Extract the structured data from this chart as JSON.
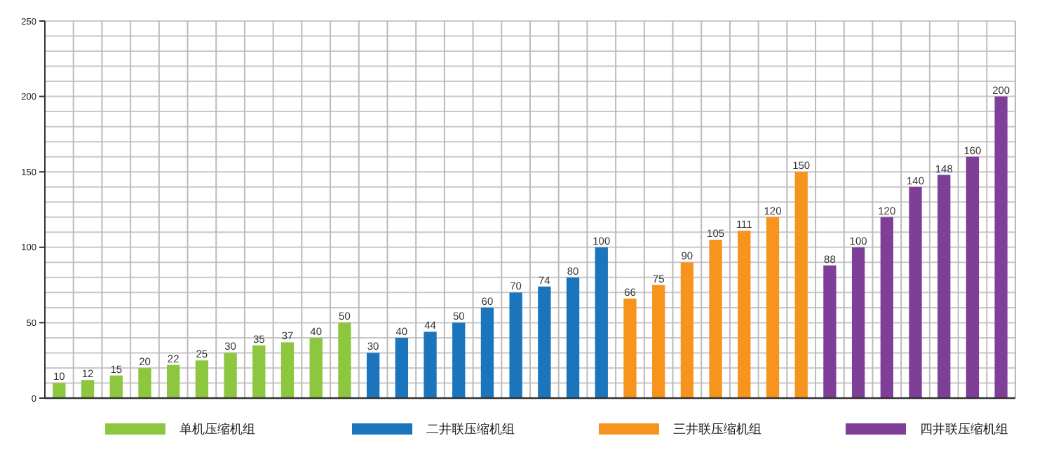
{
  "chart_data": {
    "type": "bar",
    "categories": [
      null,
      null,
      null,
      null,
      null,
      null,
      null,
      null,
      null,
      null,
      null,
      null,
      null,
      null,
      null,
      null,
      null,
      null,
      null,
      null,
      null,
      null,
      null,
      null,
      null,
      null,
      null,
      null,
      null,
      null,
      null,
      null,
      null,
      null
    ],
    "series": [
      {
        "name": "单机压缩机组",
        "color": "#8dc63f",
        "values": [
          10,
          12,
          15,
          20,
          22,
          25,
          30,
          35,
          37,
          40,
          50,
          null,
          null,
          null,
          null,
          null,
          null,
          null,
          null,
          null,
          null,
          null,
          null,
          null,
          null,
          null,
          null,
          null,
          null,
          null,
          null,
          null,
          null,
          null
        ]
      },
      {
        "name": "二井联压缩机组",
        "color": "#1b75bc",
        "values": [
          null,
          null,
          null,
          null,
          null,
          null,
          null,
          null,
          null,
          null,
          null,
          30,
          40,
          44,
          50,
          60,
          70,
          74,
          80,
          100,
          null,
          null,
          null,
          null,
          null,
          null,
          null,
          null,
          null,
          null,
          null,
          null,
          null,
          null
        ]
      },
      {
        "name": "三井联压缩机组",
        "color": "#f7941d",
        "values": [
          null,
          null,
          null,
          null,
          null,
          null,
          null,
          null,
          null,
          null,
          null,
          null,
          null,
          null,
          null,
          null,
          null,
          null,
          null,
          null,
          66,
          75,
          90,
          105,
          111,
          120,
          150,
          null,
          null,
          null,
          null,
          null,
          null,
          null
        ]
      },
      {
        "name": "四井联压缩机组",
        "color": "#7f3f98",
        "values": [
          null,
          null,
          null,
          null,
          null,
          null,
          null,
          null,
          null,
          null,
          null,
          null,
          null,
          null,
          null,
          null,
          null,
          null,
          null,
          null,
          null,
          null,
          null,
          null,
          null,
          null,
          null,
          88,
          100,
          120,
          140,
          148,
          160,
          200
        ]
      }
    ],
    "ylim": [
      0,
      250
    ],
    "yticks": [
      0,
      {
        "value": 10,
        "label": null
      },
      {
        "value": 20,
        "label": null
      },
      {
        "value": 30,
        "label": null
      },
      {
        "value": 40,
        "label": null
      },
      50,
      {
        "value": 60,
        "label": null
      },
      {
        "value": 70,
        "label": null
      },
      {
        "value": 80,
        "label": null
      },
      {
        "value": 90,
        "label": null
      },
      100,
      {
        "value": 110,
        "label": null
      },
      {
        "value": 120,
        "label": null
      },
      {
        "value": 130,
        "label": null
      },
      {
        "value": 140,
        "label": null
      },
      150,
      {
        "value": 160,
        "label": null
      },
      {
        "value": 170,
        "label": null
      },
      {
        "value": 180,
        "label": null
      },
      {
        "value": 190,
        "label": null
      },
      200,
      {
        "value": 210,
        "label": null
      },
      {
        "value": 220,
        "label": null
      },
      {
        "value": 230,
        "label": null
      },
      {
        "value": 240,
        "label": null
      },
      250
    ],
    "grid": true,
    "data_labels": true,
    "legend": "bottom"
  }
}
